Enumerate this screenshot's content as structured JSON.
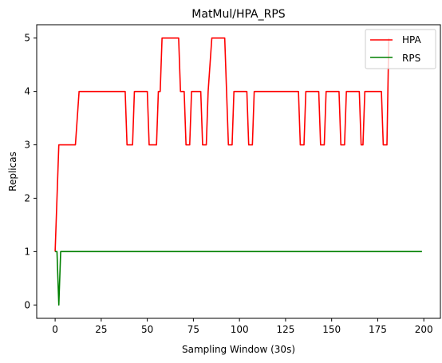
{
  "chart_data": {
    "type": "line",
    "title": "MatMul/HPA_RPS",
    "xlabel": "Sampling Window (30s)",
    "ylabel": "Replicas",
    "xlim": [
      -10,
      209
    ],
    "ylim": [
      -0.25,
      5.25
    ],
    "xticks": [
      0,
      25,
      50,
      75,
      100,
      125,
      150,
      175,
      200
    ],
    "yticks": [
      0,
      1,
      2,
      3,
      4,
      5
    ],
    "legend_position": "upper right",
    "grid": false,
    "series": [
      {
        "name": "HPA",
        "color": "#ff0000",
        "points": [
          [
            0,
            1
          ],
          [
            2,
            3
          ],
          [
            11,
            3
          ],
          [
            13,
            4
          ],
          [
            38,
            4
          ],
          [
            39,
            3
          ],
          [
            42,
            3
          ],
          [
            43,
            4
          ],
          [
            50,
            4
          ],
          [
            51,
            3
          ],
          [
            55,
            3
          ],
          [
            56,
            4
          ],
          [
            57,
            4
          ],
          [
            58,
            5
          ],
          [
            67,
            5
          ],
          [
            68,
            4
          ],
          [
            69,
            4
          ],
          [
            70,
            4
          ],
          [
            71,
            3
          ],
          [
            73,
            3
          ],
          [
            74,
            4
          ],
          [
            79,
            4
          ],
          [
            80,
            3
          ],
          [
            82,
            3
          ],
          [
            83,
            4
          ],
          [
            85,
            5
          ],
          [
            92,
            5
          ],
          [
            93,
            4
          ],
          [
            94,
            3
          ],
          [
            96,
            3
          ],
          [
            97,
            4
          ],
          [
            104,
            4
          ],
          [
            105,
            3
          ],
          [
            107,
            3
          ],
          [
            108,
            4
          ],
          [
            132,
            4
          ],
          [
            133,
            3
          ],
          [
            135,
            3
          ],
          [
            136,
            4
          ],
          [
            143,
            4
          ],
          [
            144,
            3
          ],
          [
            146,
            3
          ],
          [
            147,
            4
          ],
          [
            154,
            4
          ],
          [
            155,
            3
          ],
          [
            157,
            3
          ],
          [
            158,
            4
          ],
          [
            165,
            4
          ],
          [
            166,
            3
          ],
          [
            167,
            3
          ],
          [
            168,
            4
          ],
          [
            177,
            4
          ],
          [
            178,
            3
          ],
          [
            180,
            3
          ],
          [
            181,
            5
          ]
        ]
      },
      {
        "name": "RPS",
        "color": "#008000",
        "points": [
          [
            0,
            1
          ],
          [
            1,
            1
          ],
          [
            2,
            0
          ],
          [
            3,
            1
          ],
          [
            199,
            1
          ]
        ]
      }
    ]
  }
}
